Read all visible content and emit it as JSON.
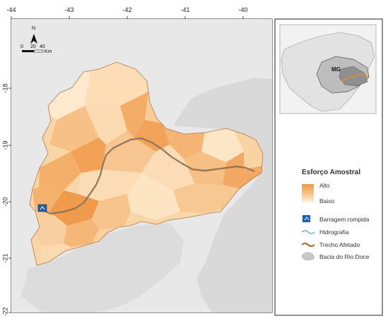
{
  "map": {
    "x_ticks": [
      "-44",
      "-43",
      "-42",
      "-41",
      "-40"
    ],
    "y_ticks": [
      "-18",
      "-19",
      "-20",
      "-21",
      "-22"
    ],
    "north_label": "N",
    "scale": {
      "labels": [
        "0",
        "20",
        "40"
      ],
      "unit": "Km"
    }
  },
  "inset": {
    "state_label": "MG"
  },
  "legend": {
    "title": "Esforço Amostral",
    "gradient_high": "Alto",
    "gradient_low": "Baixo",
    "items": [
      {
        "label": "Barragem rompida",
        "icon": "dam-icon"
      },
      {
        "label": "Hidrografia",
        "icon": "river-line"
      },
      {
        "label": "Trecho Afetado",
        "icon": "affected-stretch-line"
      },
      {
        "label": "Bacia do Rio Doce",
        "icon": "basin-patch"
      }
    ]
  },
  "colors": {
    "sampling_high": "#ef9a3d",
    "sampling_low": "#fff1dd",
    "affected_stretch": "#a8672a",
    "river": "#4a9fd6",
    "basin": "#c9c9c9",
    "dam": "#1f5fa8"
  }
}
